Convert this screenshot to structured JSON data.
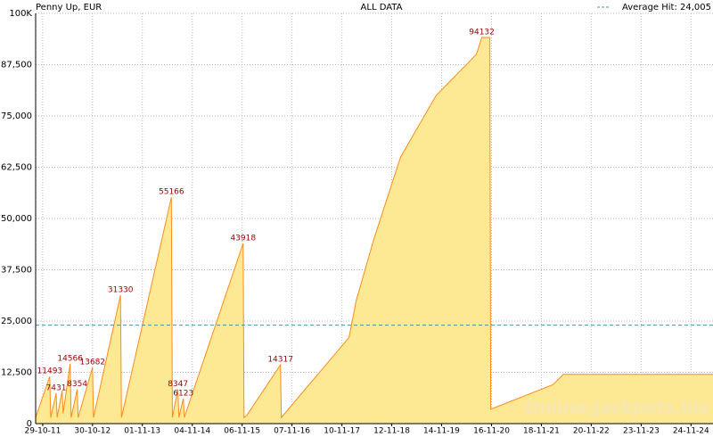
{
  "chart_data": {
    "type": "area",
    "title": "Penny Up, EUR",
    "subtitle": "ALL DATA",
    "watermark": "Online-Jackpots.biz",
    "average": {
      "value": 24005,
      "label": "Average Hit: 24,005"
    },
    "average_color": "#4a90a8",
    "xlim": [
      "07-09-11",
      "05-05-25"
    ],
    "xticks": [
      "29-10-11",
      "30-10-12",
      "01-11-13",
      "04-11-14",
      "06-11-15",
      "07-11-16",
      "10-11-17",
      "12-11-18",
      "14-11-19",
      "16-11-20",
      "18-11-21",
      "20-11-22",
      "23-11-23",
      "24-11-24"
    ],
    "ylim": [
      0,
      100000
    ],
    "yticks": [
      0,
      {
        "value": 12500,
        "label": "12,500"
      },
      {
        "value": 25000,
        "label": "25,000"
      },
      {
        "value": 37500,
        "label": "37,500"
      },
      {
        "value": 50000,
        "label": "50,000"
      },
      {
        "value": 62500,
        "label": "62,500"
      },
      {
        "value": 75000,
        "label": "75,000"
      },
      {
        "value": 87500,
        "label": "87,500"
      },
      {
        "value": 100000,
        "label": "100K"
      }
    ],
    "grid": true,
    "series": [
      {
        "color": "#ff8c1a",
        "fill": "#fde993",
        "x": [
          "07-09-11",
          "20-12-11",
          "27-12-11",
          "05-02-12",
          "12-02-12",
          "20-03-12",
          "27-03-12",
          "18-05-12",
          "25-05-12",
          "09-07-12",
          "16-07-12",
          "30-10-12",
          "06-11-12",
          "24-05-13",
          "31-05-13",
          "03-06-14",
          "10-06-14",
          "21-07-14",
          "28-07-14",
          "30-08-14",
          "06-09-14",
          "13-11-15",
          "20-11-15",
          "10-12-15",
          "14-08-16",
          "21-08-16",
          "01-01-18",
          "23-02-18",
          "03-07-18",
          "16-01-19",
          "05-10-19",
          "27-07-20",
          "05-09-20",
          "03-11-20",
          "10-11-20",
          "11-02-22",
          "29-04-22",
          "05-05-25"
        ],
        "values": [
          1500,
          11493,
          1500,
          7431,
          1500,
          8000,
          2500,
          14566,
          1500,
          8354,
          1500,
          13682,
          1500,
          31330,
          1500,
          55166,
          1500,
          8347,
          1500,
          6123,
          1500,
          43918,
          1500,
          2000,
          14317,
          1500,
          21000,
          30000,
          45000,
          65000,
          80000,
          90000,
          94132,
          94132,
          3500,
          9500,
          12000,
          12000
        ],
        "value_labels": [
          null,
          11493,
          null,
          7431,
          null,
          null,
          null,
          14566,
          null,
          8354,
          null,
          13682,
          null,
          31330,
          null,
          55166,
          null,
          8347,
          null,
          6123,
          null,
          43918,
          null,
          null,
          14317,
          null,
          null,
          null,
          null,
          null,
          null,
          null,
          94132,
          null,
          null,
          null,
          null,
          null
        ]
      }
    ]
  }
}
